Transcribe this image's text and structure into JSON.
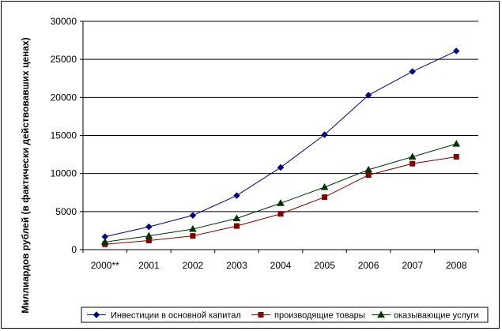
{
  "chart_data": {
    "type": "line",
    "title": "",
    "xlabel": "",
    "ylabel": "Миллиардов рублей (в фактически действовавших ценах)",
    "categories": [
      "2000**",
      "2001",
      "2002",
      "2003",
      "2004",
      "2005",
      "2006",
      "2007",
      "2008"
    ],
    "ylim": [
      0,
      30000
    ],
    "yticks": [
      "0",
      "5000",
      "10000",
      "15000",
      "20000",
      "25000",
      "30000"
    ],
    "grid": "horizontal",
    "legend_position": "bottom",
    "series": [
      {
        "name": "Инвестиции в основной капитал",
        "color": "#000080",
        "marker": "diamond",
        "values": [
          1700,
          3000,
          4500,
          7100,
          10800,
          15100,
          20300,
          23400,
          26100
        ]
      },
      {
        "name": "производящие товары",
        "color": "#800000",
        "marker": "square",
        "values": [
          700,
          1200,
          1800,
          3100,
          4700,
          6900,
          9800,
          11300,
          12200
        ]
      },
      {
        "name": "оказывающие услуги",
        "color": "#003300",
        "marker": "triangle",
        "values": [
          1000,
          1800,
          2700,
          4100,
          6100,
          8200,
          10500,
          12200,
          13900
        ]
      }
    ]
  }
}
